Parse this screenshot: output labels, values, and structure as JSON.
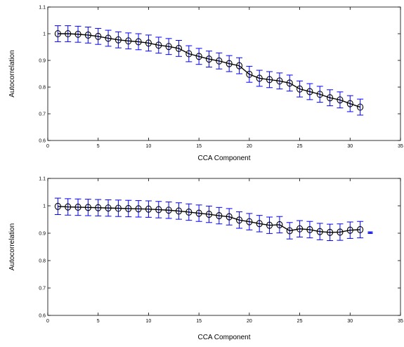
{
  "chart_data": [
    {
      "type": "line",
      "xlabel": "CCA Component",
      "ylabel": "Autocorrelation",
      "xlim": [
        0,
        35
      ],
      "ylim": [
        0.6,
        1.1
      ],
      "xticks": [
        0,
        5,
        10,
        15,
        20,
        25,
        30,
        35
      ],
      "yticks": [
        0.6,
        0.7,
        0.8,
        0.9,
        1,
        1.1
      ],
      "grid": false,
      "error_bar_halfwidth": 0.03,
      "series": [
        {
          "x": [
            1,
            2,
            3,
            4,
            5,
            6,
            7,
            8,
            9,
            10,
            11,
            12,
            13,
            14,
            15,
            16,
            17,
            18,
            19,
            20,
            21,
            22,
            23,
            24,
            25,
            26,
            27,
            28,
            29,
            30,
            31
          ],
          "values": [
            1.0,
            1.0,
            0.998,
            0.995,
            0.99,
            0.983,
            0.977,
            0.973,
            0.97,
            0.965,
            0.957,
            0.952,
            0.945,
            0.925,
            0.915,
            0.905,
            0.898,
            0.888,
            0.88,
            0.848,
            0.833,
            0.828,
            0.823,
            0.815,
            0.793,
            0.783,
            0.773,
            0.76,
            0.752,
            0.738,
            0.725
          ]
        }
      ],
      "extra_errorbars": []
    },
    {
      "type": "line",
      "xlabel": "CCA Component",
      "ylabel": "Autocorrelation",
      "xlim": [
        0,
        35
      ],
      "ylim": [
        0.6,
        1.1
      ],
      "xticks": [
        0,
        5,
        10,
        15,
        20,
        25,
        30,
        35
      ],
      "yticks": [
        0.6,
        0.7,
        0.8,
        0.9,
        1,
        1.1
      ],
      "grid": false,
      "error_bar_halfwidth": 0.03,
      "series": [
        {
          "x": [
            1,
            2,
            3,
            4,
            5,
            6,
            7,
            8,
            9,
            10,
            11,
            12,
            13,
            14,
            15,
            16,
            17,
            18,
            19,
            20,
            21,
            22,
            23,
            24,
            25,
            26,
            27,
            28,
            29,
            30,
            31
          ],
          "values": [
            0.998,
            0.996,
            0.995,
            0.994,
            0.993,
            0.992,
            0.991,
            0.99,
            0.989,
            0.988,
            0.986,
            0.984,
            0.981,
            0.977,
            0.973,
            0.969,
            0.964,
            0.96,
            0.948,
            0.942,
            0.935,
            0.929,
            0.931,
            0.909,
            0.916,
            0.913,
            0.906,
            0.903,
            0.904,
            0.911,
            0.913
          ]
        }
      ],
      "extra_errorbars": [
        {
          "x": 32,
          "y": 0.902,
          "halfwidth": 0.003
        }
      ]
    }
  ]
}
